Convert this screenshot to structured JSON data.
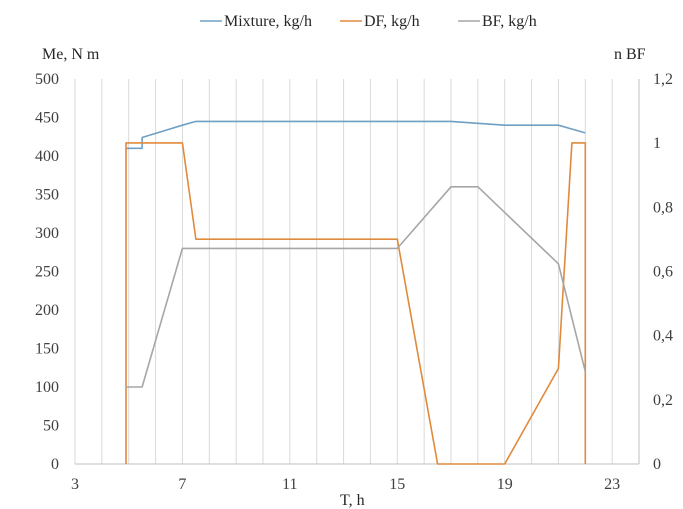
{
  "chart_data": {
    "type": "line",
    "xlabel": "T, h",
    "ylabel_left": "Me, N m",
    "ylabel_right": "n BF",
    "xlim": [
      3,
      24
    ],
    "ylim_left": [
      0,
      500
    ],
    "ylim_right": [
      0,
      1.2
    ],
    "x_ticks": [
      "3",
      "7",
      "11",
      "15",
      "19",
      "23"
    ],
    "y_left_ticks": [
      "0",
      "50",
      "100",
      "150",
      "200",
      "250",
      "300",
      "350",
      "400",
      "450",
      "500"
    ],
    "y_right_ticks": [
      "0",
      "0,2",
      "0,4",
      "0,6",
      "0,8",
      "1",
      "1,2"
    ],
    "grid_x": true,
    "grid_y": false,
    "legend_position": "top",
    "series": [
      {
        "name": "Mixture, kg/h",
        "color": "#6fa0c4",
        "axis": "left",
        "points": [
          [
            4.9,
            410
          ],
          [
            5.5,
            410
          ],
          [
            5.5,
            424
          ],
          [
            7,
            440
          ],
          [
            7.5,
            445
          ],
          [
            17,
            445
          ],
          [
            19,
            440
          ],
          [
            21,
            440
          ],
          [
            22,
            430
          ],
          [
            22,
            430
          ]
        ]
      },
      {
        "name": "DF, kg/h",
        "color": "#e08a3c",
        "axis": "left",
        "points": [
          [
            4.9,
            0
          ],
          [
            4.9,
            417
          ],
          [
            7,
            417
          ],
          [
            7.5,
            292
          ],
          [
            15,
            292
          ],
          [
            16.5,
            0
          ],
          [
            19,
            0
          ],
          [
            21,
            124
          ],
          [
            21.5,
            417
          ],
          [
            22,
            417
          ],
          [
            22,
            0
          ]
        ]
      },
      {
        "name": "BF, kg/h",
        "color": "#a6a6a6",
        "axis": "left",
        "points": [
          [
            4.9,
            100
          ],
          [
            5.5,
            100
          ],
          [
            7,
            280
          ],
          [
            15,
            280
          ],
          [
            17,
            360
          ],
          [
            18,
            360
          ],
          [
            21,
            260
          ],
          [
            22,
            120
          ]
        ]
      }
    ]
  }
}
